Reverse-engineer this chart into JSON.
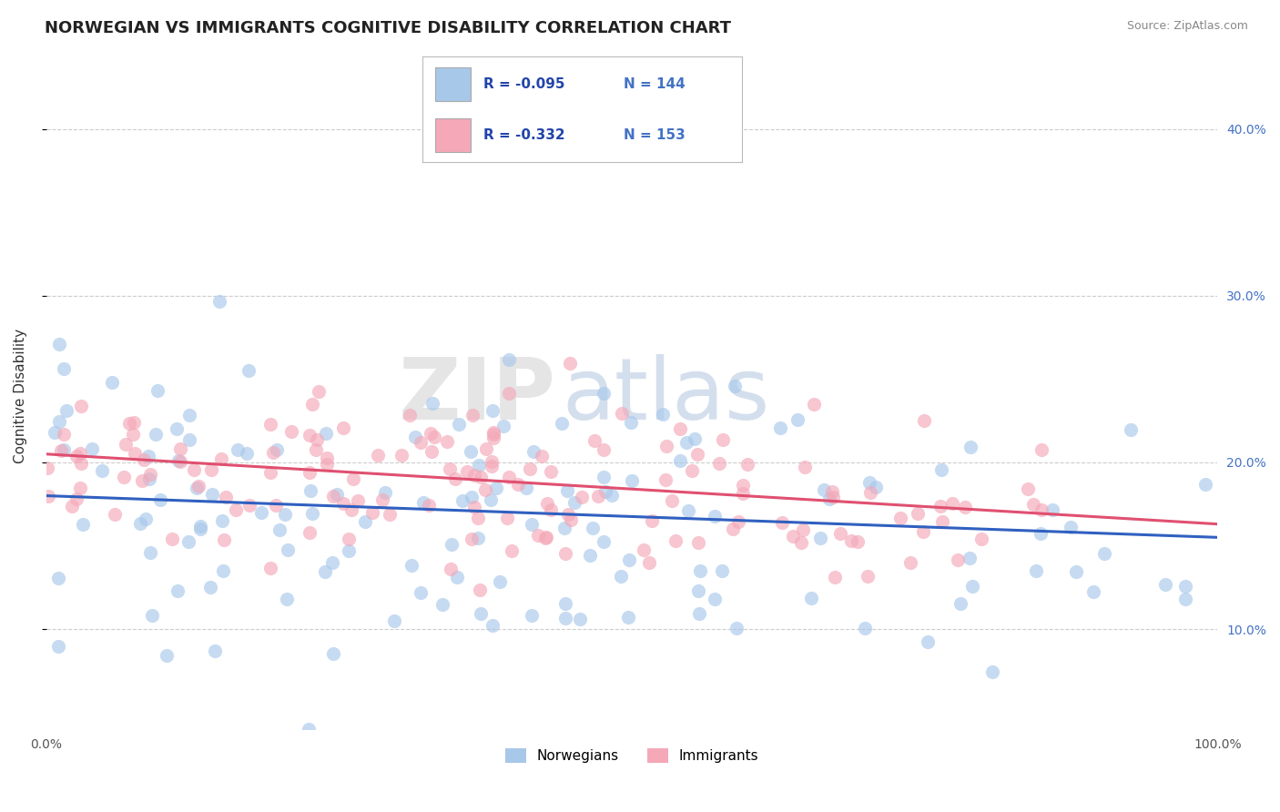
{
  "title": "NORWEGIAN VS IMMIGRANTS COGNITIVE DISABILITY CORRELATION CHART",
  "source_text": "Source: ZipAtlas.com",
  "ylabel": "Cognitive Disability",
  "xlim": [
    0.0,
    1.0
  ],
  "ylim": [
    0.04,
    0.44
  ],
  "yticks": [
    0.1,
    0.2,
    0.3,
    0.4
  ],
  "ytick_labels": [
    "10.0%",
    "20.0%",
    "30.0%",
    "40.0%"
  ],
  "xtick_labels": [
    "0.0%",
    "100.0%"
  ],
  "norwegian_color": "#a8c8ea",
  "immigrant_color": "#f4a8b8",
  "norwegian_line_color": "#3060c0",
  "immigrant_line_color": "#e05070",
  "R_norwegian": -0.095,
  "N_norwegian": 144,
  "R_immigrant": -0.332,
  "N_immigrant": 153,
  "title_fontsize": 13,
  "axis_label_fontsize": 11,
  "tick_fontsize": 10,
  "watermark_first": "ZIP",
  "watermark_second": "atlas",
  "watermark_color1": "#d0d0d0",
  "watermark_color2": "#a0b8d8",
  "background_color": "#ffffff",
  "grid_color": "#cccccc",
  "nor_intercept": 0.18,
  "nor_slope": -0.025,
  "imm_intercept": 0.205,
  "imm_slope": -0.042,
  "nor_spread": 0.048,
  "imm_spread": 0.028,
  "nor_seed": 7,
  "imm_seed": 13
}
